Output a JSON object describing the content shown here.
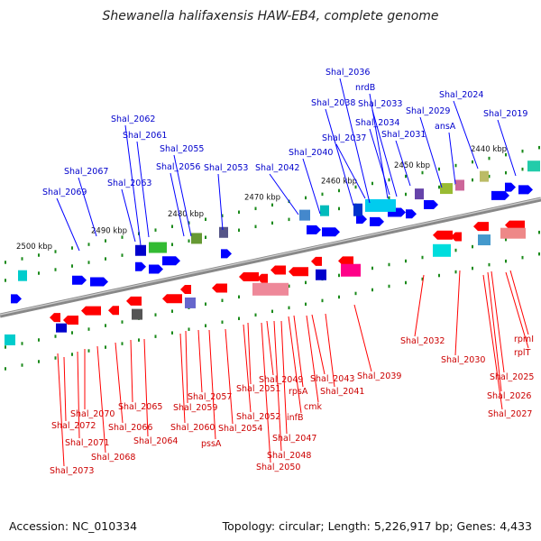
{
  "title": "Shewanella halifaxensis HAW-EB4, complete genome",
  "footer": {
    "accession": "Accession: NC_010334",
    "topology": "Topology: circular; Length: 5,226,917 bp; Genes: 4,433"
  },
  "colors": {
    "plus_strand_gene": "#0000ff",
    "minus_strand_gene": "#ff0000",
    "plus_label": "#0000cc",
    "minus_label": "#cc0000",
    "backbone": "#888888",
    "tick_mark": "#1a8a1a",
    "ruler_text": "#111111"
  },
  "ruler_ticks": [
    "2500 kbp",
    "2490 kbp",
    "2480 kbp",
    "2470 kbp",
    "2460 kbp",
    "2450 kbp",
    "2440 kbp"
  ],
  "plus_strand_labels": [
    "Shal_2069",
    "Shal_2067",
    "Shal_2063",
    "Shal_2061",
    "Shal_2062",
    "Shal_2056",
    "Shal_2055",
    "Shal_2053",
    "Shal_2042",
    "Shal_2040",
    "Shal_2038",
    "Shal_2037",
    "Shal_2036",
    "nrdB",
    "Shal_2034",
    "Shal_2033",
    "Shal_2031",
    "Shal_2029",
    "ansA",
    "Shal_2024",
    "Shal_2019"
  ],
  "minus_strand_labels": [
    "Shal_2073",
    "Shal_2072",
    "Shal_2071",
    "Shal_2070",
    "Shal_2068",
    "Shal_2066",
    "Shal_2065",
    "Shal_2064",
    "Shal_2060",
    "Shal_2059",
    "Shal_2057",
    "pssA",
    "Shal_2054",
    "Shal_2052",
    "Shal_2051",
    "Shal_2050",
    "Shal_2049",
    "Shal_2048",
    "Shal_2047",
    "infB",
    "rpsA",
    "cmk",
    "Shal_2043",
    "Shal_2041",
    "Shal_2039",
    "Shal_2032",
    "Shal_2030",
    "Shal_2027",
    "Shal_2026",
    "Shal_2025",
    "rplT",
    "rpmI"
  ]
}
